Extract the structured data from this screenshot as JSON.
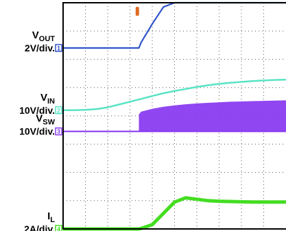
{
  "chart_data": {
    "type": "line",
    "title": "",
    "xlabel": "",
    "ylabel": "",
    "grid": true,
    "grid_divisions": {
      "x": 10,
      "y": 8
    },
    "x": [
      0.0,
      0.5,
      1.0,
      1.5,
      2.0,
      2.5,
      3.0,
      3.4,
      3.5,
      4.0,
      4.5,
      5.0,
      5.5,
      6.0,
      6.5,
      7.0,
      7.5,
      8.0,
      8.5,
      9.0,
      9.5,
      10.0
    ],
    "ylim": [
      0,
      8
    ],
    "series": [
      {
        "name": "VOUT",
        "label": {
          "main": "V",
          "sub": "OUT",
          "scale": "2V/div."
        },
        "color": "#2f54c8",
        "marker": "1",
        "values": [
          6.4,
          6.4,
          6.4,
          6.4,
          6.4,
          6.4,
          6.4,
          6.4,
          6.6,
          7.25,
          7.85,
          8.0,
          8.0,
          8.0,
          8.0,
          8.0,
          8.0,
          8.0,
          8.0,
          8.0,
          8.0,
          8.0
        ]
      },
      {
        "name": "VIN",
        "label": {
          "main": "V",
          "sub": "IN",
          "scale": "10V/div."
        },
        "color": "#57e3c4",
        "marker": "2",
        "values": [
          4.2,
          4.2,
          4.21,
          4.24,
          4.3,
          4.4,
          4.5,
          4.58,
          4.6,
          4.7,
          4.8,
          4.88,
          4.95,
          5.02,
          5.08,
          5.13,
          5.17,
          5.2,
          5.23,
          5.25,
          5.27,
          5.28
        ]
      },
      {
        "name": "VSW",
        "label": {
          "main": "V",
          "sub": "SW",
          "scale": "10V/div."
        },
        "color": "#8a3cf0",
        "marker": "3",
        "values": [
          3.45,
          3.45,
          3.45,
          3.45,
          3.45,
          3.45,
          3.45,
          3.45,
          3.45,
          3.45,
          3.45,
          3.45,
          3.45,
          3.45,
          3.45,
          3.45,
          3.45,
          3.45,
          3.45,
          3.45,
          3.45,
          3.45
        ],
        "switching_band_top": [
          null,
          null,
          null,
          null,
          null,
          null,
          null,
          4.05,
          4.15,
          4.25,
          4.32,
          4.37,
          4.41,
          4.44,
          4.46,
          4.48,
          4.5,
          4.51,
          4.52,
          4.53,
          4.54,
          4.55
        ]
      },
      {
        "name": "IL",
        "label": {
          "main": "I",
          "sub": "L",
          "scale": "2A/div."
        },
        "color": "#44dd22",
        "marker": "4",
        "values": [
          0.0,
          0.0,
          0.0,
          0.0,
          0.0,
          0.0,
          0.0,
          0.0,
          0.02,
          0.15,
          0.55,
          0.95,
          1.1,
          1.05,
          1.0,
          0.98,
          0.97,
          0.96,
          0.95,
          0.95,
          0.95,
          0.95
        ]
      }
    ],
    "trigger_marker_x": 3.5,
    "trigger_marker_color": "#e06a20"
  }
}
